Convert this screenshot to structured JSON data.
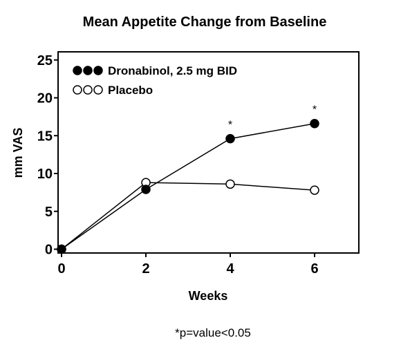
{
  "chart_data": {
    "type": "line",
    "title": "Mean Appetite Change from Baseline",
    "xlabel": "Weeks",
    "ylabel": "mm VAS",
    "x": [
      0,
      2,
      4,
      6
    ],
    "xticks": [
      "0",
      "2",
      "4",
      "6"
    ],
    "yticks": [
      "0",
      "5",
      "10",
      "15",
      "20",
      "25"
    ],
    "xlim": [
      0,
      7
    ],
    "ylim": [
      -0.5,
      25.5
    ],
    "grid": false,
    "legend_position": "top-left",
    "series": [
      {
        "name": "Dronabinol, 2.5 mg BID",
        "marker": "filled-circle",
        "color": "#000000",
        "values": [
          0,
          7.9,
          14.6,
          16.6
        ]
      },
      {
        "name": "Placebo",
        "marker": "open-circle",
        "color": "#000000",
        "values": [
          0,
          8.8,
          8.6,
          7.8
        ]
      }
    ],
    "annotations": [
      {
        "text": "*",
        "x": 4,
        "series": "Dronabinol, 2.5 mg BID"
      },
      {
        "text": "*",
        "x": 6,
        "series": "Dronabinol, 2.5 mg BID"
      }
    ],
    "footnote": "*p=value<0.05"
  }
}
